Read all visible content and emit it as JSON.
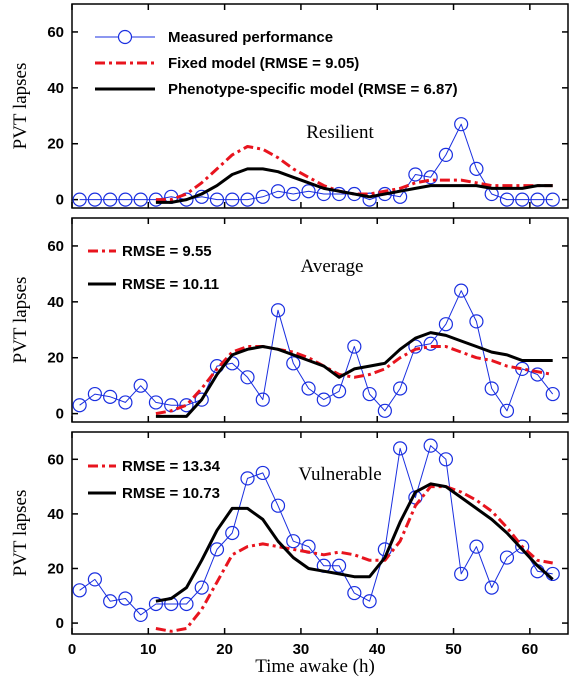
{
  "chart_data": [
    {
      "type": "line",
      "title": "Resilient",
      "ylabel": "PVT lapses",
      "xlim": [
        0,
        65
      ],
      "ylim": [
        -3,
        70
      ],
      "yticks": [
        0,
        20,
        40,
        60
      ],
      "legend": [
        {
          "label": "Measured performance",
          "style": "measured"
        },
        {
          "label": "Fixed model (RMSE = 9.05)",
          "style": "fixed"
        },
        {
          "label": "Phenotype-specific model (RMSE = 6.87)",
          "style": "pheno"
        }
      ],
      "legend_position": "top-left",
      "series": [
        {
          "name": "Measured performance",
          "style": "measured",
          "x": [
            1,
            3,
            5,
            7,
            9,
            11,
            13,
            15,
            17,
            19,
            21,
            23,
            25,
            27,
            29,
            31,
            33,
            35,
            37,
            39,
            41,
            43,
            45,
            47,
            49,
            51,
            53,
            55,
            57,
            59,
            61,
            63
          ],
          "y": [
            0,
            0,
            0,
            0,
            0,
            0,
            1,
            0,
            1,
            0,
            0,
            0,
            1,
            3,
            2,
            3,
            2,
            2,
            2,
            0,
            2,
            1,
            9,
            8,
            16,
            27,
            11,
            2,
            0,
            0,
            0,
            0
          ]
        },
        {
          "name": "Fixed model (RMSE = 9.05)",
          "style": "fixed",
          "x": [
            11,
            13,
            15,
            17,
            19,
            21,
            23,
            25,
            27,
            29,
            31,
            33,
            35,
            37,
            39,
            41,
            43,
            45,
            47,
            49,
            51,
            53,
            55,
            57,
            59,
            61,
            63
          ],
          "y": [
            0,
            0,
            2,
            6,
            11,
            16,
            19,
            18,
            15,
            11,
            8,
            5,
            3,
            2,
            2,
            3,
            4,
            6,
            7,
            7,
            7,
            6,
            5,
            5,
            5,
            5,
            5
          ]
        },
        {
          "name": "Phenotype-specific model (RMSE = 6.87)",
          "style": "pheno",
          "x": [
            11,
            13,
            15,
            17,
            19,
            21,
            23,
            25,
            27,
            29,
            31,
            33,
            35,
            37,
            39,
            41,
            43,
            45,
            47,
            49,
            51,
            53,
            55,
            57,
            59,
            61,
            63
          ],
          "y": [
            -1,
            -1,
            0,
            2,
            5,
            9,
            11,
            11,
            10,
            8,
            6,
            4,
            3,
            2,
            1,
            2,
            3,
            4,
            5,
            5,
            5,
            5,
            4,
            4,
            4,
            5,
            5
          ]
        }
      ]
    },
    {
      "type": "line",
      "title": "Average",
      "ylabel": "PVT lapses",
      "xlim": [
        0,
        65
      ],
      "ylim": [
        -3,
        70
      ],
      "yticks": [
        0,
        20,
        40,
        60
      ],
      "legend": [
        {
          "label": "RMSE = 9.55",
          "style": "fixed"
        },
        {
          "label": "RMSE = 10.11",
          "style": "pheno"
        }
      ],
      "legend_position": "top-left",
      "series": [
        {
          "name": "",
          "style": "measured",
          "x": [
            1,
            3,
            5,
            7,
            9,
            11,
            13,
            15,
            17,
            19,
            21,
            23,
            25,
            27,
            29,
            31,
            33,
            35,
            37,
            39,
            41,
            43,
            45,
            47,
            49,
            51,
            53,
            55,
            57,
            59,
            61,
            63
          ],
          "y": [
            3,
            7,
            6,
            4,
            10,
            4,
            3,
            3,
            5,
            17,
            18,
            13,
            5,
            37,
            18,
            9,
            5,
            8,
            24,
            7,
            1,
            9,
            24,
            25,
            32,
            44,
            33,
            9,
            1,
            16,
            14,
            7
          ]
        },
        {
          "name": "RMSE = 9.55",
          "style": "fixed",
          "x": [
            11,
            13,
            15,
            17,
            19,
            21,
            23,
            25,
            27,
            29,
            31,
            33,
            35,
            37,
            39,
            41,
            43,
            45,
            47,
            49,
            51,
            53,
            55,
            57,
            59,
            61,
            63
          ],
          "y": [
            0,
            1,
            3,
            9,
            16,
            22,
            24,
            24,
            23,
            22,
            20,
            17,
            14,
            13,
            14,
            16,
            20,
            23,
            24,
            24,
            22,
            20,
            19,
            17,
            16,
            15,
            14
          ]
        },
        {
          "name": "RMSE = 10.11",
          "style": "pheno",
          "x": [
            11,
            13,
            15,
            17,
            19,
            21,
            23,
            25,
            27,
            29,
            31,
            33,
            35,
            37,
            39,
            41,
            43,
            45,
            47,
            49,
            51,
            53,
            55,
            57,
            59,
            61,
            63
          ],
          "y": [
            -1,
            -1,
            -1,
            5,
            14,
            21,
            23,
            24,
            23,
            21,
            19,
            17,
            13,
            16,
            17,
            18,
            23,
            27,
            29,
            28,
            26,
            24,
            22,
            21,
            19,
            19,
            19
          ]
        }
      ]
    },
    {
      "type": "line",
      "title": "Vulnerable",
      "ylabel": "PVT lapses",
      "xlabel": "Time awake (h)",
      "xlim": [
        0,
        65
      ],
      "xticks": [
        0,
        10,
        20,
        30,
        40,
        50,
        60
      ],
      "ylim": [
        -4,
        70
      ],
      "yticks": [
        0,
        20,
        40,
        60
      ],
      "legend": [
        {
          "label": "RMSE = 13.34",
          "style": "fixed"
        },
        {
          "label": "RMSE = 10.73",
          "style": "pheno"
        }
      ],
      "legend_position": "top-left",
      "series": [
        {
          "name": "",
          "style": "measured",
          "x": [
            1,
            3,
            5,
            7,
            9,
            11,
            13,
            15,
            17,
            19,
            21,
            23,
            25,
            27,
            29,
            31,
            33,
            35,
            37,
            39,
            41,
            43,
            45,
            47,
            49,
            51,
            53,
            55,
            57,
            59,
            61,
            63
          ],
          "y": [
            12,
            16,
            8,
            9,
            3,
            7,
            7,
            7,
            13,
            27,
            33,
            53,
            55,
            43,
            30,
            28,
            21,
            21,
            11,
            8,
            27,
            64,
            46,
            65,
            60,
            18,
            28,
            13,
            24,
            28,
            19,
            18
          ]
        },
        {
          "name": "RMSE = 13.34",
          "style": "fixed",
          "x": [
            11,
            13,
            15,
            17,
            19,
            21,
            23,
            25,
            27,
            29,
            31,
            33,
            35,
            37,
            39,
            41,
            43,
            45,
            47,
            49,
            51,
            53,
            55,
            57,
            59,
            61,
            63
          ],
          "y": [
            -2,
            -3,
            -2,
            5,
            15,
            25,
            28,
            29,
            28,
            27,
            26,
            25,
            26,
            25,
            23,
            23,
            30,
            43,
            50,
            50,
            48,
            45,
            41,
            35,
            28,
            23,
            22
          ]
        },
        {
          "name": "RMSE = 10.73",
          "style": "pheno",
          "x": [
            11,
            13,
            15,
            17,
            19,
            21,
            23,
            25,
            27,
            29,
            31,
            33,
            35,
            37,
            39,
            41,
            43,
            45,
            47,
            49,
            51,
            53,
            55,
            57,
            59,
            61,
            63
          ],
          "y": [
            8,
            9,
            13,
            23,
            34,
            42,
            42,
            38,
            30,
            24,
            20,
            19,
            18,
            17,
            17,
            24,
            37,
            48,
            51,
            50,
            46,
            42,
            38,
            33,
            27,
            21,
            16
          ]
        }
      ]
    }
  ],
  "colors": {
    "measured": "#1a2fe0",
    "fixed": "#e8141e",
    "pheno": "#000000",
    "axis": "#000000"
  }
}
